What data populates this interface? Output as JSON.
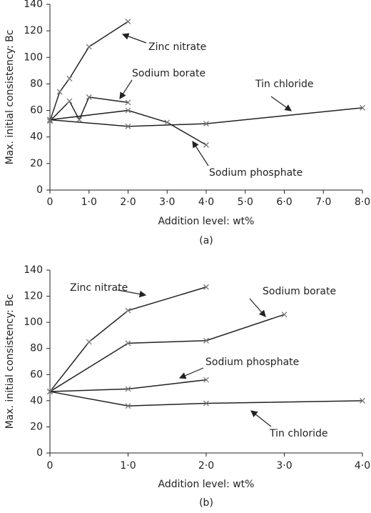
{
  "chart_data": [
    {
      "type": "line",
      "caption": "(a)",
      "x_label": "Addition level: wt%",
      "y_label": "Max. initial consistency: Bc",
      "xlim": [
        0,
        8
      ],
      "ylim": [
        0,
        140
      ],
      "xticks": [
        0,
        {
          "value": 1,
          "label": "1·0"
        },
        {
          "value": 2,
          "label": "2·0"
        },
        {
          "value": 3,
          "label": "3·0"
        },
        {
          "value": 4,
          "label": "4·0"
        },
        {
          "value": 5,
          "label": "5·0"
        },
        {
          "value": 6,
          "label": "6·0"
        },
        {
          "value": 7,
          "label": "7·0"
        },
        {
          "value": 8,
          "label": "8·0"
        }
      ],
      "yticks": [
        0,
        20,
        40,
        60,
        80,
        100,
        120,
        140
      ],
      "series": [
        {
          "name": "Zinc nitrate",
          "color": "#222222",
          "x": [
            0,
            0.25,
            0.5,
            1,
            2
          ],
          "values": [
            52,
            74,
            84,
            108,
            127
          ]
        },
        {
          "name": "Sodium borate",
          "color": "#222222",
          "x": [
            0,
            0.5,
            0.75,
            1,
            2
          ],
          "values": [
            52,
            67,
            53,
            70,
            66
          ]
        },
        {
          "name": "Tin chloride",
          "color": "#222222",
          "x": [
            0,
            2,
            4,
            8
          ],
          "values": [
            53,
            48,
            50,
            62
          ]
        },
        {
          "name": "Sodium phosphate",
          "color": "#222222",
          "x": [
            0,
            2,
            3,
            4
          ],
          "values": [
            53,
            60,
            51,
            34
          ]
        }
      ]
    },
    {
      "type": "line",
      "caption": "(b)",
      "x_label": "Addition level: wt%",
      "y_label": "Max. initial consistency: Bc",
      "xlim": [
        0,
        4
      ],
      "ylim": [
        0,
        140
      ],
      "xticks": [
        0,
        {
          "value": 1,
          "label": "1·0"
        },
        {
          "value": 2,
          "label": "2·0"
        },
        {
          "value": 3,
          "label": "3·0"
        },
        {
          "value": 4,
          "label": "4·0"
        }
      ],
      "yticks": [
        0,
        20,
        40,
        60,
        80,
        100,
        120,
        140
      ],
      "series": [
        {
          "name": "Zinc nitrate",
          "color": "#222222",
          "x": [
            0,
            0.5,
            1,
            2
          ],
          "values": [
            47,
            85,
            109,
            127
          ]
        },
        {
          "name": "Sodium borate",
          "color": "#222222",
          "x": [
            0,
            1,
            2,
            3
          ],
          "values": [
            47,
            84,
            86,
            106
          ]
        },
        {
          "name": "Sodium phosphate",
          "color": "#222222",
          "x": [
            0,
            1,
            2
          ],
          "values": [
            47,
            49,
            56
          ]
        },
        {
          "name": "Tin chloride",
          "color": "#222222",
          "x": [
            0,
            1,
            2,
            4
          ],
          "values": [
            47,
            36,
            38,
            40
          ]
        }
      ]
    }
  ]
}
